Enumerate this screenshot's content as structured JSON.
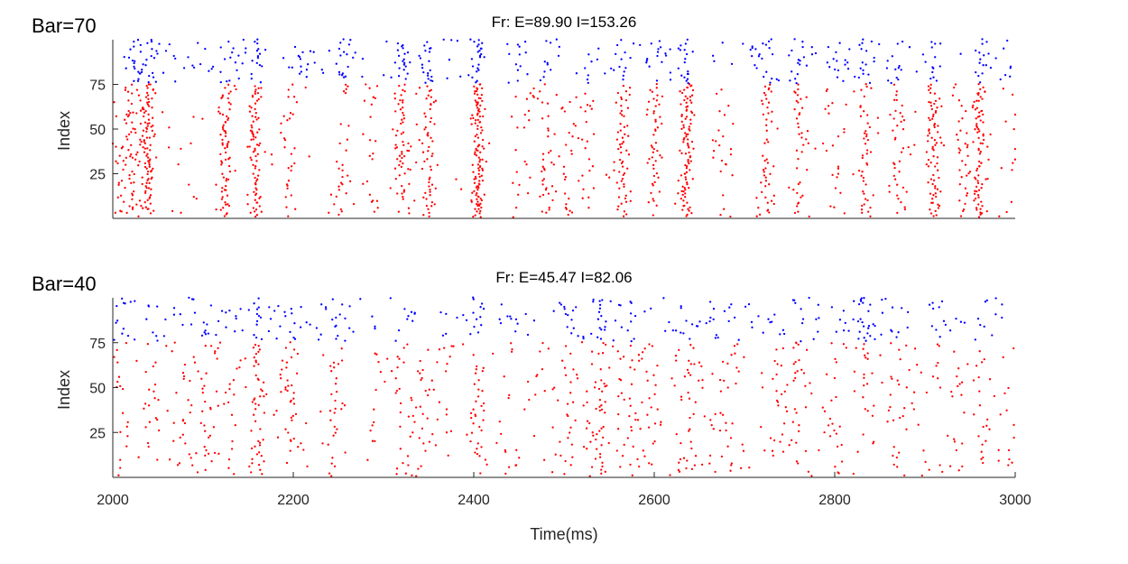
{
  "chart_data": [
    {
      "type": "scatter",
      "panel_label": "Bar=70",
      "title": "Fr: E=89.90 I=153.26",
      "xlabel": "",
      "ylabel": "Index",
      "xlim": [
        2000,
        3000
      ],
      "ylim": [
        0,
        100
      ],
      "x_ticks": [],
      "y_ticks": [
        25,
        50,
        75
      ],
      "y_tick_labels": [
        "25",
        "50",
        "75"
      ],
      "excitatory": {
        "index_range": [
          1,
          75
        ],
        "color": "#ff0000",
        "burst_times": [
          2005,
          2018,
          2030,
          2040,
          2075,
          2125,
          2158,
          2195,
          2253,
          2290,
          2320,
          2350,
          2405,
          2450,
          2480,
          2505,
          2525,
          2565,
          2600,
          2635,
          2675,
          2725,
          2760,
          2800,
          2835,
          2870,
          2910,
          2940,
          2960,
          2995
        ],
        "burst_weights": [
          0.6,
          1.0,
          1.0,
          1.6,
          0.2,
          1.4,
          1.6,
          0.7,
          0.8,
          0.7,
          1.4,
          1.3,
          2.4,
          0.4,
          0.8,
          0.7,
          0.6,
          1.3,
          1.2,
          2.0,
          0.6,
          1.1,
          1.1,
          0.6,
          1.2,
          1.0,
          1.5,
          0.8,
          1.6,
          0.4
        ],
        "background_per_100ms": 6
      },
      "inhibitory": {
        "index_range": [
          76,
          100
        ],
        "color": "#0000ff",
        "burst_times": [
          2025,
          2040,
          2125,
          2158,
          2205,
          2253,
          2320,
          2350,
          2405,
          2450,
          2485,
          2525,
          2565,
          2600,
          2635,
          2725,
          2760,
          2800,
          2835,
          2870,
          2910,
          2960,
          2995
        ],
        "burst_weights": [
          0.8,
          1.0,
          1.0,
          1.0,
          0.8,
          0.8,
          1.0,
          1.0,
          1.4,
          0.6,
          0.6,
          0.5,
          0.9,
          0.8,
          1.0,
          0.8,
          0.8,
          0.7,
          0.9,
          0.8,
          0.9,
          1.0,
          0.6
        ],
        "background_per_100ms": 14
      }
    },
    {
      "type": "scatter",
      "panel_label": "Bar=40",
      "title": "Fr: E=45.47 I=82.06",
      "xlabel": "Time(ms)",
      "ylabel": "Index",
      "xlim": [
        2000,
        3000
      ],
      "ylim": [
        0,
        100
      ],
      "x_ticks": [
        2000,
        2200,
        2400,
        2600,
        2800,
        3000
      ],
      "x_tick_labels": [
        "2000",
        "2200",
        "2400",
        "2600",
        "2800",
        "3000"
      ],
      "y_ticks": [
        25,
        50,
        75
      ],
      "y_tick_labels": [
        "25",
        "50",
        "75"
      ],
      "excitatory": {
        "index_range": [
          1,
          75
        ],
        "color": "#ff0000",
        "burst_times": [
          2008,
          2045,
          2080,
          2100,
          2127,
          2160,
          2195,
          2245,
          2290,
          2320,
          2340,
          2365,
          2405,
          2440,
          2470,
          2505,
          2530,
          2540,
          2570,
          2595,
          2635,
          2660,
          2690,
          2735,
          2760,
          2800,
          2835,
          2870,
          2910,
          2935,
          2965,
          2995
        ],
        "burst_weights": [
          0.5,
          0.8,
          0.5,
          0.8,
          0.5,
          1.1,
          0.8,
          0.7,
          0.4,
          0.5,
          0.6,
          0.5,
          0.9,
          0.4,
          0.4,
          0.7,
          0.5,
          0.8,
          0.6,
          0.5,
          0.6,
          0.4,
          0.4,
          0.4,
          0.6,
          0.5,
          0.4,
          0.5,
          0.4,
          0.4,
          0.7,
          0.4
        ],
        "background_per_100ms": 10
      },
      "inhibitory": {
        "index_range": [
          76,
          100
        ],
        "color": "#0000ff",
        "burst_times": [
          2008,
          2045,
          2100,
          2160,
          2195,
          2245,
          2320,
          2405,
          2505,
          2540,
          2570,
          2635,
          2660,
          2760,
          2835,
          2870,
          2910,
          2965
        ],
        "burst_weights": [
          0.6,
          0.7,
          0.8,
          0.7,
          0.6,
          0.6,
          0.6,
          0.8,
          0.6,
          0.8,
          0.6,
          0.6,
          0.5,
          0.6,
          0.6,
          0.6,
          0.5,
          0.6
        ],
        "background_per_100ms": 18
      }
    }
  ]
}
